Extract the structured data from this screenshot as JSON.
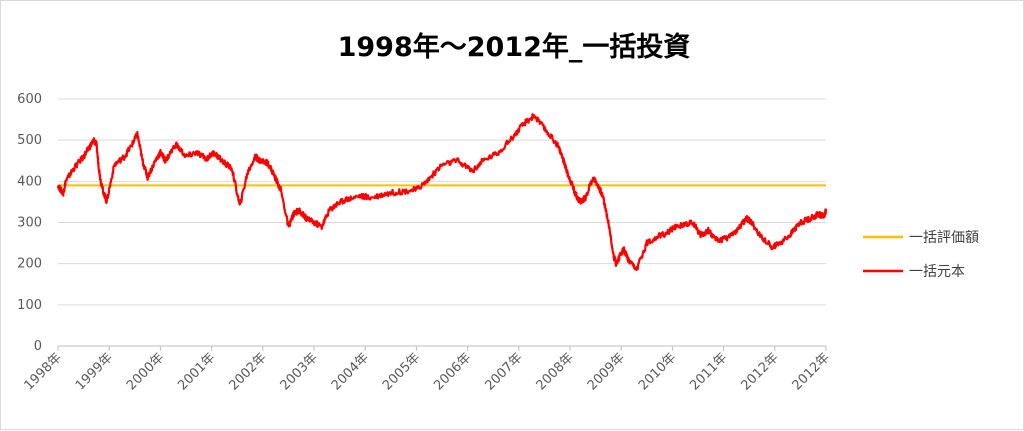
{
  "chart_data": {
    "type": "line",
    "title": "1998年～2012年_一括投資",
    "xlabel": "",
    "ylabel": "",
    "ylim": [
      0,
      600
    ],
    "y_ticks": [
      "0",
      "100",
      "200",
      "300",
      "400",
      "500",
      "600"
    ],
    "x_ticks": [
      "1998年",
      "1999年",
      "2000年",
      "2001年",
      "2002年",
      "2003年",
      "2004年",
      "2005年",
      "2006年",
      "2007年",
      "2008年",
      "2009年",
      "2010年",
      "2011年",
      "2012年",
      "2012年"
    ],
    "grid": true,
    "legend_position": "right",
    "series": [
      {
        "name": "一括評価額",
        "color": "#FFC000",
        "x": [
          0,
          15
        ],
        "y": [
          390,
          390
        ]
      },
      {
        "name": "一括元本",
        "color": "#FF0000",
        "x": [
          0,
          0.1,
          0.15,
          0.3,
          0.5,
          0.6,
          0.7,
          0.75,
          0.8,
          0.85,
          0.95,
          1.1,
          1.3,
          1.45,
          1.55,
          1.65,
          1.75,
          1.9,
          2.0,
          2.1,
          2.3,
          2.5,
          2.7,
          2.9,
          3.05,
          3.2,
          3.4,
          3.55,
          3.7,
          3.85,
          3.9,
          3.95,
          4.1,
          4.2,
          4.35,
          4.5,
          4.6,
          4.7,
          4.78,
          4.85,
          5.0,
          5.15,
          5.3,
          5.45,
          5.6,
          5.9,
          6.1,
          6.4,
          6.7,
          7.0,
          7.2,
          7.5,
          7.8,
          8.1,
          8.3,
          8.6,
          8.9,
          9.1,
          9.3,
          9.55,
          9.75,
          9.85,
          9.95,
          10.05,
          10.1,
          10.2,
          10.3,
          10.45,
          10.55,
          10.65,
          10.75,
          10.85,
          10.9,
          11.0,
          11.05,
          11.15,
          11.3,
          11.5,
          11.7,
          11.9,
          12.0,
          12.2,
          12.4,
          12.55,
          12.7,
          12.9,
          13.1,
          13.25,
          13.35,
          13.45,
          13.55,
          13.7,
          13.95,
          14.1,
          14.3,
          14.5,
          14.7,
          14.85,
          14.95,
          15.0
        ],
        "y": [
          390,
          370,
          400,
          430,
          460,
          480,
          500,
          490,
          430,
          390,
          350,
          440,
          460,
          490,
          515,
          450,
          410,
          450,
          470,
          450,
          490,
          460,
          470,
          455,
          470,
          450,
          430,
          340,
          420,
          460,
          455,
          450,
          445,
          420,
          380,
          290,
          320,
          330,
          320,
          310,
          300,
          290,
          330,
          345,
          355,
          365,
          360,
          370,
          375,
          380,
          400,
          440,
          450,
          425,
          450,
          470,
          510,
          540,
          560,
          520,
          490,
          460,
          420,
          390,
          370,
          350,
          360,
          410,
          390,
          360,
          300,
          220,
          200,
          225,
          235,
          205,
          185,
          250,
          265,
          275,
          285,
          295,
          300,
          270,
          280,
          255,
          265,
          280,
          295,
          310,
          300,
          270,
          240,
          250,
          270,
          300,
          310,
          320,
          315,
          330
        ]
      }
    ]
  }
}
